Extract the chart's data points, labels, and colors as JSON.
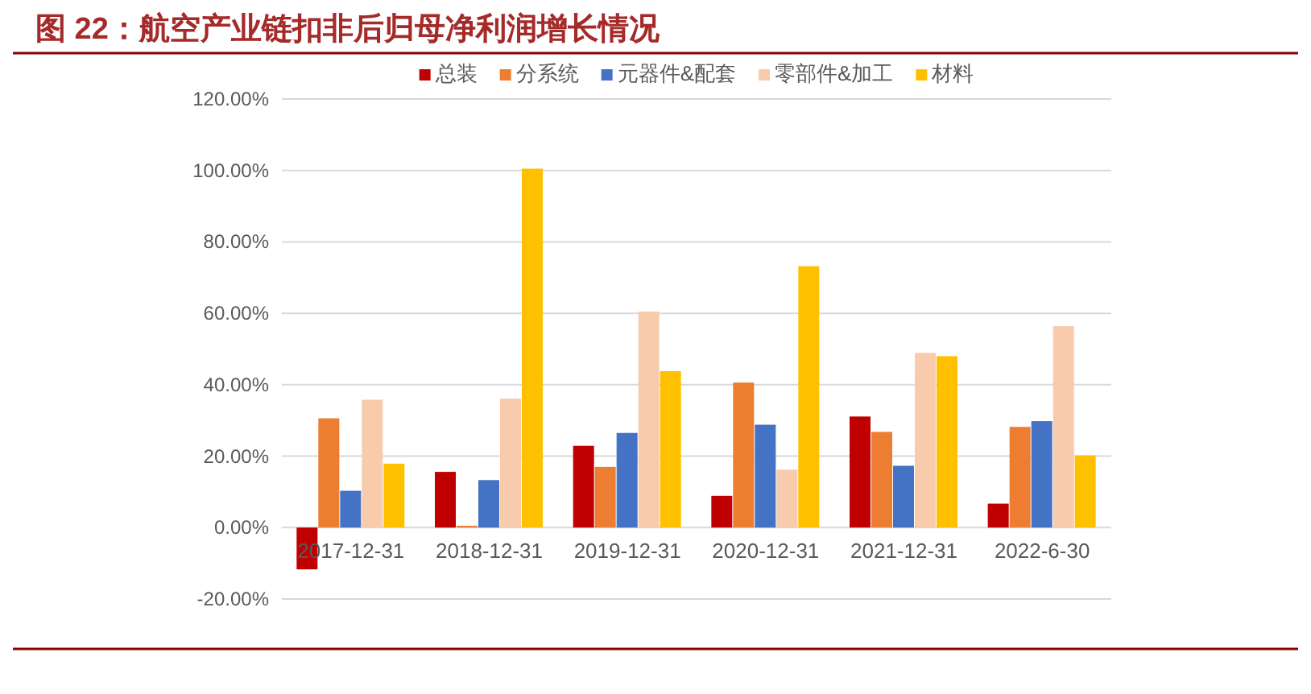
{
  "chart_data": {
    "type": "bar",
    "title": "图 22：航空产业链扣非后归母净利润增长情况",
    "categories": [
      "2017-12-31",
      "2018-12-31",
      "2019-12-31",
      "2020-12-31",
      "2021-12-31",
      "2022-6-30"
    ],
    "series": [
      {
        "name": "总装",
        "color": "#c00000",
        "values": [
          -11.7,
          15.6,
          22.9,
          8.9,
          31.1,
          6.7
        ]
      },
      {
        "name": "分系统",
        "color": "#ed7d31",
        "values": [
          30.6,
          0.5,
          17.0,
          40.6,
          26.8,
          28.2
        ]
      },
      {
        "name": "元器件&配套",
        "color": "#4472c4",
        "values": [
          10.3,
          13.3,
          26.5,
          28.8,
          17.3,
          29.8
        ]
      },
      {
        "name": "零部件&加工",
        "color": "#f8cbad",
        "values": [
          35.8,
          36.1,
          60.5,
          16.2,
          48.9,
          56.4
        ]
      },
      {
        "name": "材料",
        "color": "#ffc000",
        "values": [
          17.9,
          100.5,
          43.8,
          73.2,
          48.0,
          20.2
        ]
      }
    ],
    "ylim": [
      -20,
      120
    ],
    "yticks": [
      {
        "value": -20,
        "label": "-20.00%"
      },
      {
        "value": 0,
        "label": "0.00%"
      },
      {
        "value": 20,
        "label": "20.00%"
      },
      {
        "value": 40,
        "label": "40.00%"
      },
      {
        "value": 60,
        "label": "60.00%"
      },
      {
        "value": 80,
        "label": "80.00%"
      },
      {
        "value": 100,
        "label": "100.00%"
      },
      {
        "value": 120,
        "label": "120.00%"
      }
    ],
    "grid": "y",
    "legend": "top"
  }
}
